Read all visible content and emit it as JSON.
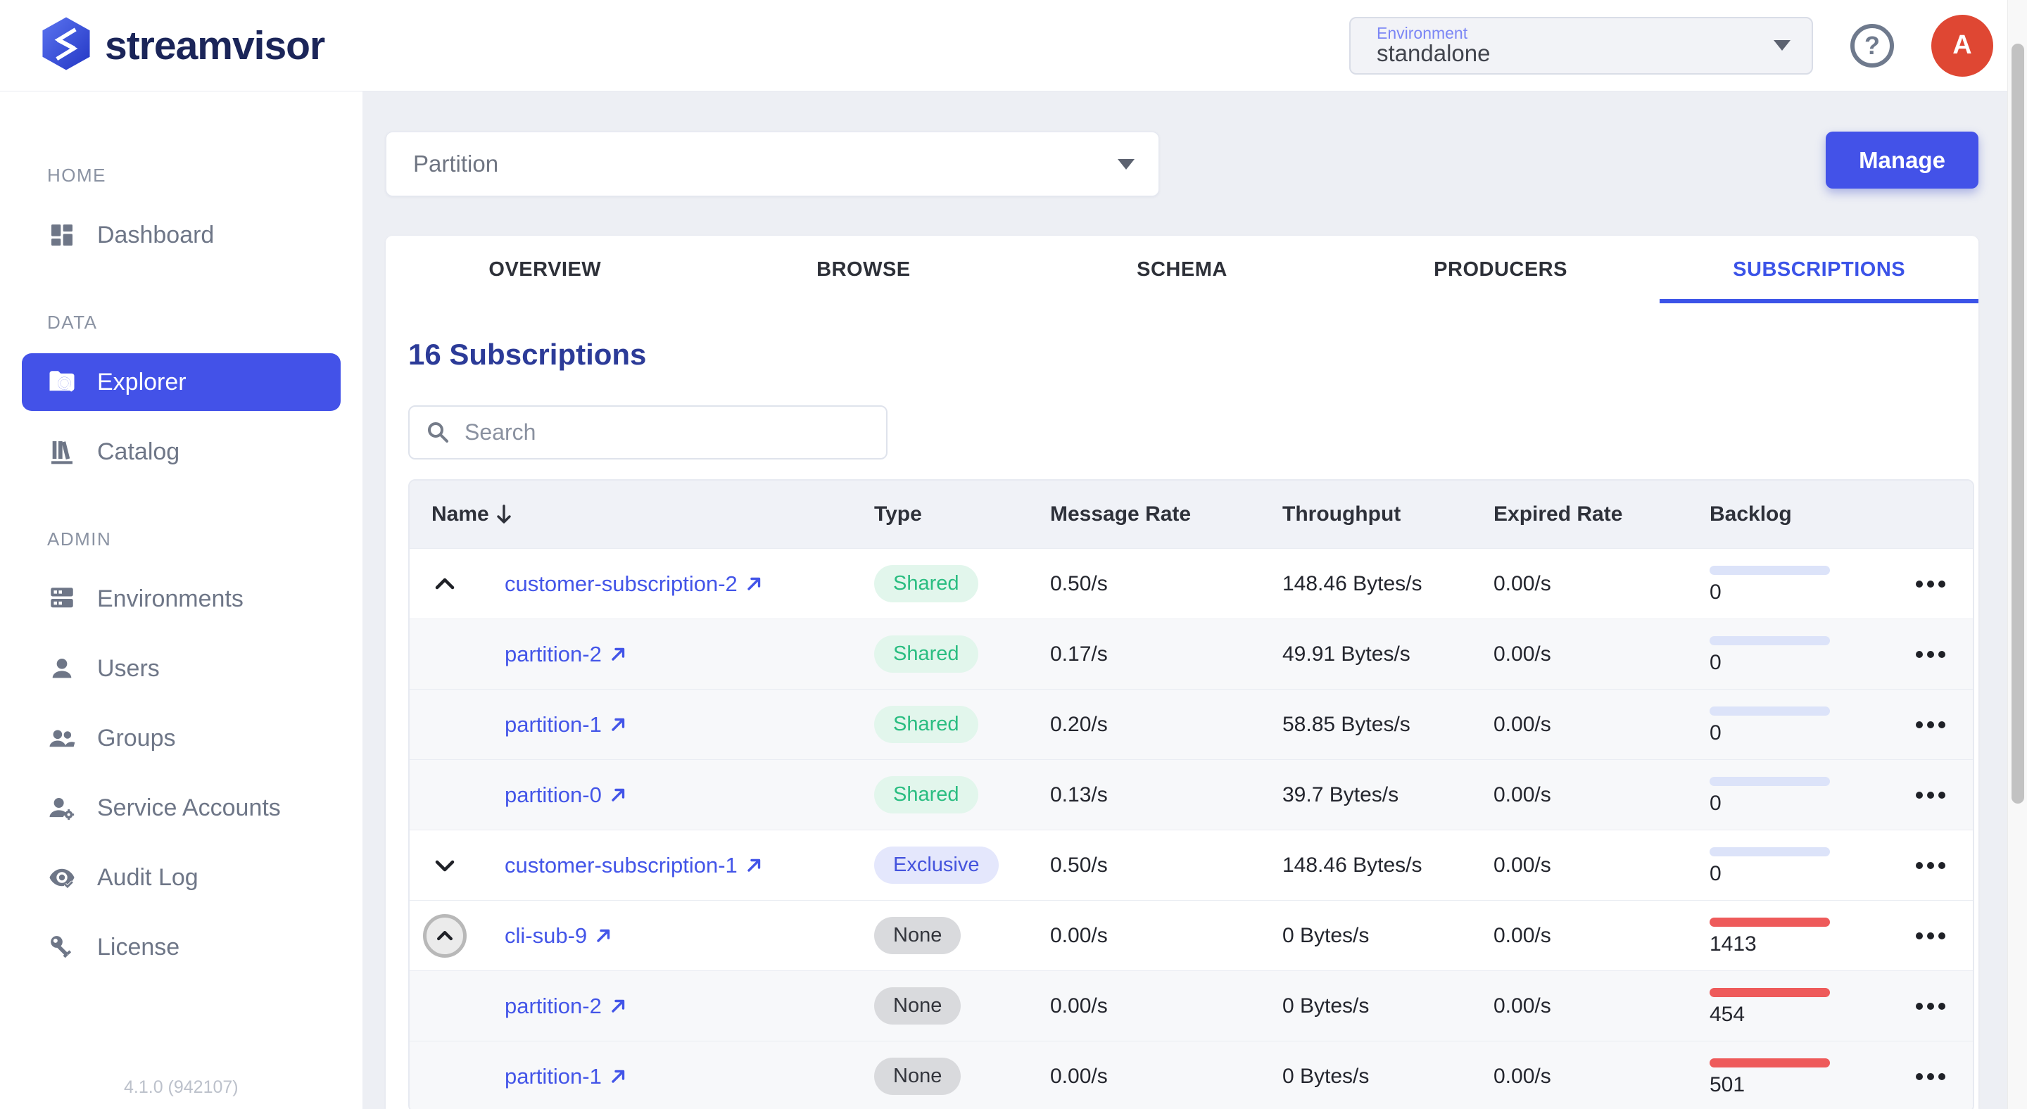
{
  "brand": {
    "name": "streamvisor"
  },
  "header": {
    "environment_label": "Environment",
    "environment_value": "standalone",
    "avatar_initial": "A"
  },
  "sidebar": {
    "sections": [
      {
        "label": "HOME",
        "items": [
          {
            "label": "Dashboard",
            "icon": "dashboard-icon",
            "active": false
          }
        ]
      },
      {
        "label": "DATA",
        "items": [
          {
            "label": "Explorer",
            "icon": "folder-search-icon",
            "active": true
          },
          {
            "label": "Catalog",
            "icon": "library-icon",
            "active": false
          }
        ]
      },
      {
        "label": "ADMIN",
        "items": [
          {
            "label": "Environments",
            "icon": "server-stack-icon",
            "active": false
          },
          {
            "label": "Users",
            "icon": "person-icon",
            "active": false
          },
          {
            "label": "Groups",
            "icon": "people-icon",
            "active": false
          },
          {
            "label": "Service Accounts",
            "icon": "person-gear-icon",
            "active": false
          },
          {
            "label": "Audit Log",
            "icon": "eye-check-icon",
            "active": false
          },
          {
            "label": "License",
            "icon": "key-icon",
            "active": false
          }
        ]
      }
    ],
    "version": "4.1.0 (942107)"
  },
  "toolbar": {
    "partition_label": "Partition",
    "manage_label": "Manage"
  },
  "tabs": [
    {
      "label": "OVERVIEW",
      "active": false
    },
    {
      "label": "BROWSE",
      "active": false
    },
    {
      "label": "SCHEMA",
      "active": false
    },
    {
      "label": "PRODUCERS",
      "active": false
    },
    {
      "label": "SUBSCRIPTIONS",
      "active": true
    }
  ],
  "subscriptions": {
    "heading": "16 Subscriptions",
    "search_placeholder": "Search",
    "sort": {
      "column": "Name",
      "direction": "desc"
    },
    "table": {
      "columns": [
        "Name",
        "Type",
        "Message Rate",
        "Throughput",
        "Expired Rate",
        "Backlog"
      ],
      "rows": [
        {
          "name": "customer-subscription-2",
          "expander": "up",
          "child": false,
          "type": "Shared",
          "type_variant": "shared",
          "message_rate": "0.50/s",
          "throughput": "148.46 Bytes/s",
          "expired_rate": "0.00/s",
          "backlog": "0",
          "backlog_variant": "ok"
        },
        {
          "name": "partition-2",
          "expander": null,
          "child": true,
          "type": "Shared",
          "type_variant": "shared",
          "message_rate": "0.17/s",
          "throughput": "49.91 Bytes/s",
          "expired_rate": "0.00/s",
          "backlog": "0",
          "backlog_variant": "ok"
        },
        {
          "name": "partition-1",
          "expander": null,
          "child": true,
          "type": "Shared",
          "type_variant": "shared",
          "message_rate": "0.20/s",
          "throughput": "58.85 Bytes/s",
          "expired_rate": "0.00/s",
          "backlog": "0",
          "backlog_variant": "ok"
        },
        {
          "name": "partition-0",
          "expander": null,
          "child": true,
          "type": "Shared",
          "type_variant": "shared",
          "message_rate": "0.13/s",
          "throughput": "39.7 Bytes/s",
          "expired_rate": "0.00/s",
          "backlog": "0",
          "backlog_variant": "ok"
        },
        {
          "name": "customer-subscription-1",
          "expander": "down",
          "child": false,
          "type": "Exclusive",
          "type_variant": "exclusive",
          "message_rate": "0.50/s",
          "throughput": "148.46 Bytes/s",
          "expired_rate": "0.00/s",
          "backlog": "0",
          "backlog_variant": "ok"
        },
        {
          "name": "cli-sub-9",
          "expander": "up-circled",
          "child": false,
          "type": "None",
          "type_variant": "none",
          "message_rate": "0.00/s",
          "throughput": "0 Bytes/s",
          "expired_rate": "0.00/s",
          "backlog": "1413",
          "backlog_variant": "alert"
        },
        {
          "name": "partition-2",
          "expander": null,
          "child": true,
          "type": "None",
          "type_variant": "none",
          "message_rate": "0.00/s",
          "throughput": "0 Bytes/s",
          "expired_rate": "0.00/s",
          "backlog": "454",
          "backlog_variant": "alert"
        },
        {
          "name": "partition-1",
          "expander": null,
          "child": true,
          "type": "None",
          "type_variant": "none",
          "message_rate": "0.00/s",
          "throughput": "0 Bytes/s",
          "expired_rate": "0.00/s",
          "backlog": "501",
          "backlog_variant": "alert"
        }
      ]
    }
  },
  "colors": {
    "accent_blue": "#4352e8",
    "link_blue": "#4355e8",
    "heading_indigo": "#2c3b98",
    "badge_shared_bg": "#e2f6ec",
    "badge_shared_text": "#2abd81",
    "badge_exclusive_bg": "#e4e7fc",
    "badge_exclusive_text": "#4453dd",
    "badge_none_bg": "#d9dadd",
    "badge_none_text": "#33353c",
    "backlog_ok_bar": "#dce3f9",
    "backlog_alert_bar": "#ee5a5a",
    "avatar_red": "#df4733"
  }
}
